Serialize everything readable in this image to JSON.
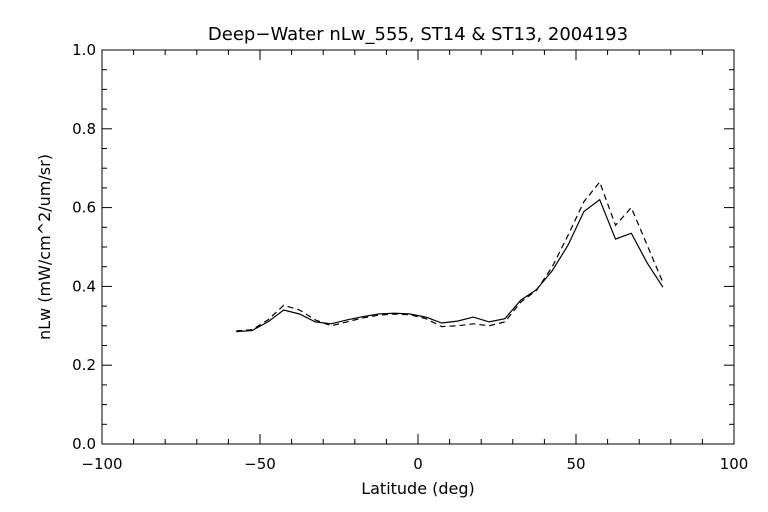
{
  "chart_data": {
    "type": "line",
    "title": "Deep−Water nLw_555, ST14 & ST13, 2004193",
    "xlabel": "Latitude (deg)",
    "ylabel": "nLw (mW/cm^2/um/sr)",
    "xlim": [
      -100,
      100
    ],
    "ylim": [
      0.0,
      1.0
    ],
    "xticks": [
      -100,
      -50,
      0,
      50,
      100
    ],
    "xtick_labels": [
      "−100",
      "−50",
      "0",
      "50",
      "100"
    ],
    "yticks": [
      0.0,
      0.2,
      0.4,
      0.6,
      0.8,
      1.0
    ],
    "ytick_labels": [
      "0.0",
      "0.2",
      "0.4",
      "0.6",
      "0.8",
      "1.0"
    ],
    "grid": false,
    "series": [
      {
        "style": "solid",
        "x": [
          -57.5,
          -52.5,
          -47.5,
          -42.5,
          -37.5,
          -32.5,
          -27.5,
          -22.5,
          -17.5,
          -12.5,
          -7.5,
          -2.5,
          2.5,
          7.5,
          12.5,
          17.5,
          22.5,
          27.5,
          32.5,
          37.5,
          42.5,
          47.5,
          52.5,
          57.5,
          62.5,
          67.5,
          72.5,
          77.5
        ],
        "y": [
          0.285,
          0.288,
          0.31,
          0.34,
          0.33,
          0.31,
          0.305,
          0.315,
          0.323,
          0.33,
          0.332,
          0.33,
          0.322,
          0.307,
          0.312,
          0.322,
          0.31,
          0.318,
          0.365,
          0.392,
          0.44,
          0.505,
          0.59,
          0.62,
          0.52,
          0.535,
          0.46,
          0.398
        ]
      },
      {
        "style": "dashed",
        "x": [
          -57.5,
          -52.5,
          -47.5,
          -42.5,
          -37.5,
          -32.5,
          -27.5,
          -22.5,
          -17.5,
          -12.5,
          -7.5,
          -2.5,
          2.5,
          7.5,
          12.5,
          17.5,
          22.5,
          27.5,
          32.5,
          37.5,
          42.5,
          47.5,
          52.5,
          57.5,
          62.5,
          67.5,
          72.5,
          77.5
        ],
        "y": [
          0.287,
          0.29,
          0.315,
          0.352,
          0.34,
          0.315,
          0.3,
          0.31,
          0.32,
          0.327,
          0.33,
          0.328,
          0.318,
          0.298,
          0.3,
          0.305,
          0.3,
          0.31,
          0.36,
          0.39,
          0.45,
          0.53,
          0.615,
          0.665,
          0.555,
          0.6,
          0.505,
          0.41
        ]
      }
    ]
  }
}
